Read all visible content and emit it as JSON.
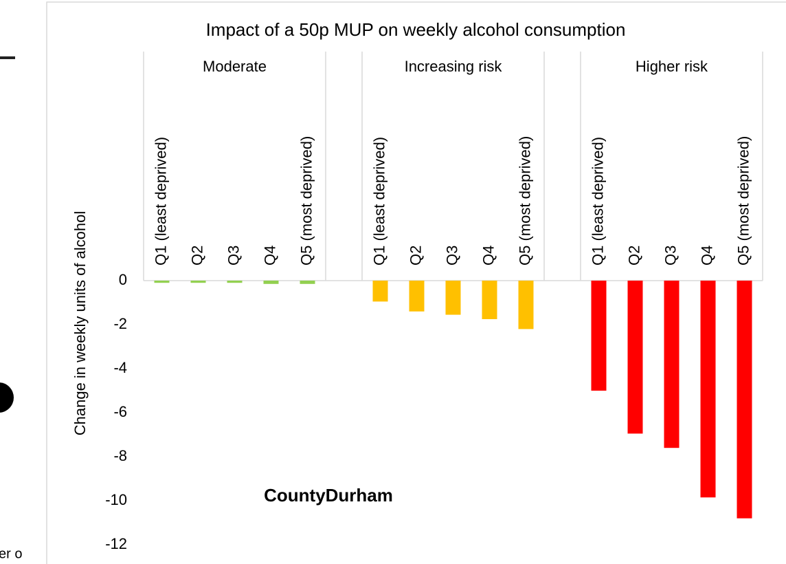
{
  "page_fragment": {
    "text": "er o"
  },
  "chart_data": {
    "type": "grouped_bar",
    "title": "Impact of a 50p MUP on weekly alcohol consumption",
    "y_label": "Change in weekly units of alcohol",
    "annotation": "CountyDurham",
    "categories": [
      "Q1 (least deprived)",
      "Q2",
      "Q3",
      "Q4",
      "Q5 (most deprived)"
    ],
    "series": [
      {
        "name": "Moderate",
        "color": "#92d050",
        "values": [
          -0.1,
          -0.1,
          -0.1,
          -0.15,
          -0.15
        ]
      },
      {
        "name": "Increasing risk",
        "color": "#ffc000",
        "values": [
          -0.95,
          -1.4,
          -1.55,
          -1.75,
          -2.2
        ]
      },
      {
        "name": "Higher risk",
        "color": "#ff0000",
        "values": [
          -5.0,
          -6.95,
          -7.6,
          -9.85,
          -10.8
        ]
      }
    ],
    "ylim": [
      -12,
      0
    ],
    "yticks": [
      0,
      -2,
      -4,
      -6,
      -8,
      -10,
      -12
    ],
    "grid": false
  }
}
